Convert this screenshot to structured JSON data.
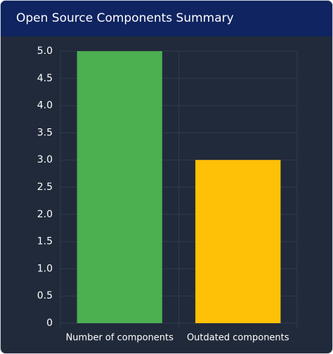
{
  "chart_data": {
    "type": "bar",
    "title": "Open Source Components Summary",
    "categories": [
      "Number of components",
      "Outdated components"
    ],
    "values": [
      5,
      3
    ],
    "colors": [
      "#4caf50",
      "#ffc107"
    ],
    "ylim": [
      0,
      5
    ],
    "yticks": [
      0,
      0.5,
      {
        "value": 1,
        "label": "1.0"
      },
      1.5,
      {
        "value": 2,
        "label": "2.0"
      },
      2.5,
      {
        "value": 3,
        "label": "3.0"
      },
      3.5,
      {
        "value": 4,
        "label": "4.0"
      },
      4.5,
      {
        "value": 5,
        "label": "5.0"
      }
    ],
    "grid": true
  }
}
